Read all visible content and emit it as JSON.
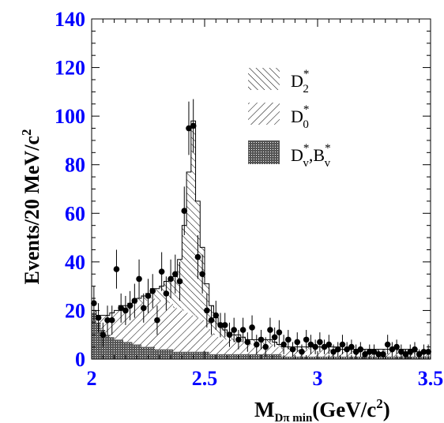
{
  "chart_data": {
    "type": "bar",
    "xlabel": "M",
    "xlabel_sub": "Dπ min",
    "xlabel_unit_open": "(GeV/c",
    "xlabel_unit_sup": "2",
    "xlabel_unit_close": ")",
    "ylabel": "Events/20 MeV/c",
    "ylabel_sup": "2",
    "xlim": [
      2.0,
      3.5
    ],
    "ylim": [
      0,
      140
    ],
    "x_ticks": [
      2,
      2.5,
      3,
      3.5
    ],
    "x_tick_labels": [
      "2",
      "2.5",
      "3",
      "3.5"
    ],
    "y_ticks": [
      0,
      20,
      40,
      60,
      80,
      100,
      120,
      140
    ],
    "y_tick_labels": [
      "0",
      "20",
      "40",
      "60",
      "80",
      "100",
      "120",
      "140"
    ],
    "legend": [
      {
        "base": "D",
        "sup": "*",
        "sub": "2",
        "pattern": "hatch-d2"
      },
      {
        "base": "D",
        "sup": "*",
        "sub": "0",
        "pattern": "hatch-d0"
      },
      {
        "base": "D",
        "sup": "*",
        "sub": "v",
        "base2": ",B",
        "sup2": "*",
        "sub2": "v",
        "pattern": "dense-bg"
      }
    ],
    "bin_edges": [
      2.0,
      2.02,
      2.04,
      2.06,
      2.08,
      2.1,
      2.12,
      2.14,
      2.16,
      2.18,
      2.2,
      2.22,
      2.24,
      2.26,
      2.28,
      2.3,
      2.32,
      2.34,
      2.36,
      2.38,
      2.4,
      2.42,
      2.44,
      2.46,
      2.48,
      2.5,
      2.52,
      2.54,
      2.56,
      2.58,
      2.6,
      2.62,
      2.64,
      2.66,
      2.68,
      2.7,
      2.72,
      2.74,
      2.76,
      2.78,
      2.8,
      2.82,
      2.84,
      2.86,
      2.88,
      2.9,
      2.92,
      2.94,
      2.96,
      2.98,
      3.0,
      3.02,
      3.04,
      3.06,
      3.08,
      3.1,
      3.12,
      3.14,
      3.16,
      3.18,
      3.2,
      3.22,
      3.24,
      3.26,
      3.28,
      3.3,
      3.32,
      3.34,
      3.36,
      3.38,
      3.4,
      3.42,
      3.44,
      3.46,
      3.48,
      3.5
    ],
    "series": [
      {
        "name": "D*v,B*v",
        "values": [
          19,
          15,
          12,
          10,
          9,
          8,
          8,
          7,
          7,
          6,
          6,
          5,
          5,
          5,
          4,
          4,
          4,
          4,
          3,
          3,
          3,
          3,
          3,
          3,
          3,
          3,
          2,
          2,
          2,
          2,
          2,
          2,
          2,
          2,
          2,
          2,
          2,
          2,
          2,
          2,
          2,
          2,
          1,
          1,
          1,
          1,
          1,
          1,
          1,
          1,
          1,
          1,
          1,
          1,
          1,
          1,
          1,
          1,
          1,
          1,
          1,
          1,
          1,
          1,
          1,
          1,
          1,
          1,
          1,
          1,
          1,
          1,
          1,
          1,
          1
        ]
      },
      {
        "name": "D*0",
        "values": [
          1,
          3,
          6,
          8,
          10,
          12,
          13,
          14,
          15,
          16,
          17,
          18,
          19,
          20,
          20,
          20,
          20,
          19,
          18,
          18,
          17,
          16,
          15,
          14,
          13,
          12,
          10,
          8,
          7,
          6,
          6,
          5,
          5,
          5,
          4,
          4,
          4,
          4,
          4,
          4,
          4,
          3,
          3,
          3,
          3,
          3,
          3,
          3,
          3,
          3,
          3,
          3,
          3,
          3,
          3,
          2,
          2,
          2,
          2,
          2,
          2,
          2,
          2,
          2,
          2,
          2,
          2,
          2,
          2,
          2,
          2,
          1,
          1,
          1,
          1
        ]
      },
      {
        "name": "D*2",
        "values": [
          0,
          0,
          0,
          0,
          0,
          0,
          1,
          1,
          1,
          2,
          2,
          3,
          3,
          4,
          5,
          6,
          8,
          10,
          13,
          20,
          35,
          58,
          80,
          48,
          30,
          16,
          10,
          7,
          5,
          4,
          3,
          3,
          3,
          2,
          2,
          2,
          2,
          2,
          2,
          2,
          1,
          1,
          1,
          1,
          1,
          1,
          1,
          1,
          1,
          1,
          1,
          1,
          1,
          1,
          1,
          1,
          1,
          1,
          1,
          1,
          1,
          1,
          1,
          1,
          1,
          1,
          1,
          1,
          1,
          1,
          1,
          1,
          1,
          1,
          1
        ]
      }
    ],
    "data_points": {
      "x": [
        2.01,
        2.03,
        2.05,
        2.07,
        2.09,
        2.11,
        2.13,
        2.15,
        2.17,
        2.19,
        2.21,
        2.23,
        2.25,
        2.27,
        2.29,
        2.31,
        2.33,
        2.35,
        2.37,
        2.39,
        2.41,
        2.43,
        2.45,
        2.47,
        2.49,
        2.51,
        2.53,
        2.55,
        2.57,
        2.59,
        2.61,
        2.63,
        2.65,
        2.67,
        2.69,
        2.71,
        2.73,
        2.75,
        2.77,
        2.79,
        2.81,
        2.83,
        2.85,
        2.87,
        2.89,
        2.91,
        2.93,
        2.95,
        2.97,
        2.99,
        3.01,
        3.03,
        3.05,
        3.07,
        3.09,
        3.11,
        3.13,
        3.15,
        3.17,
        3.19,
        3.21,
        3.23,
        3.25,
        3.27,
        3.29,
        3.31,
        3.33,
        3.35,
        3.37,
        3.39,
        3.41,
        3.43,
        3.45,
        3.47,
        3.49
      ],
      "y": [
        23,
        17,
        10,
        16,
        16,
        37,
        21,
        20,
        22,
        24,
        33,
        21,
        26,
        28,
        16,
        36,
        27,
        33,
        35,
        32,
        61,
        95,
        96,
        42,
        35,
        20,
        16,
        18,
        14,
        14,
        10,
        12,
        8,
        12,
        7,
        13,
        6,
        8,
        5,
        12,
        9,
        11,
        6,
        8,
        4,
        7,
        3,
        8,
        6,
        5,
        7,
        5,
        6,
        3,
        4,
        6,
        4,
        5,
        3,
        4,
        2,
        3,
        3,
        2,
        2,
        6,
        4,
        5,
        3,
        2,
        3,
        4,
        2,
        3,
        3
      ],
      "err": [
        7,
        6,
        5,
        6,
        6,
        8,
        6,
        6,
        6,
        7,
        8,
        6,
        7,
        7,
        6,
        8,
        7,
        8,
        8,
        8,
        10,
        11,
        11,
        9,
        8,
        7,
        6,
        6,
        5,
        5,
        5,
        5,
        4,
        5,
        4,
        5,
        4,
        4,
        4,
        5,
        4,
        5,
        4,
        4,
        3,
        4,
        3,
        4,
        4,
        3,
        4,
        3,
        4,
        3,
        3,
        4,
        3,
        3,
        3,
        3,
        2,
        3,
        3,
        2,
        2,
        4,
        3,
        3,
        3,
        2,
        3,
        3,
        2,
        3,
        3
      ]
    }
  }
}
